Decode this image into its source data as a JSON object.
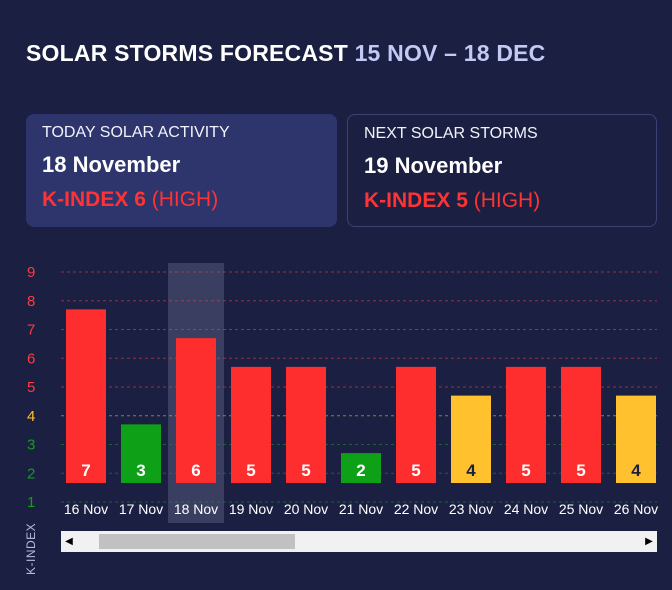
{
  "header": {
    "title_main": "SOLAR STORMS FORECAST",
    "title_range": "15 NOV – 18 DEC"
  },
  "today": {
    "label": "TODAY SOLAR ACTIVITY",
    "date": "18 November",
    "kindex_label": "K-INDEX",
    "kindex_value": "6",
    "level": "(HIGH)"
  },
  "next": {
    "label": "NEXT SOLAR STORMS",
    "date": "19 November",
    "kindex_label": "K-INDEX",
    "kindex_value": "5",
    "level": "(HIGH)"
  },
  "colors": {
    "high": "#ff2e2e",
    "medium": "#ffc22e",
    "low": "#0ea117",
    "highlight": "#3a3f61"
  },
  "scrollbar": {
    "left_icon": "arrow-left-icon",
    "right_icon": "arrow-right-icon"
  },
  "chart_data": {
    "type": "bar",
    "ylabel": "K-INDEX",
    "ylim": [
      1,
      9
    ],
    "yticks": [
      9,
      8,
      7,
      6,
      5,
      4,
      3,
      2,
      1
    ],
    "ytick_colors": {
      "9": "#ff3b3b",
      "8": "#ff3b3b",
      "7": "#ff3b3b",
      "6": "#ff3b3b",
      "5": "#ff3b3b",
      "4": "#ffc22e",
      "3": "#0ea117",
      "2": "#0ea117",
      "1": "#0ea117"
    },
    "categories": [
      "16 Nov",
      "17 Nov",
      "18 Nov",
      "19 Nov",
      "20 Nov",
      "21 Nov",
      "22 Nov",
      "23 Nov",
      "24 Nov",
      "25 Nov",
      "26 Nov"
    ],
    "values": [
      7,
      3,
      6,
      5,
      5,
      2,
      5,
      4,
      5,
      5,
      4
    ],
    "labels": [
      "7",
      "3",
      "6",
      "5",
      "5",
      "2",
      "5",
      "4",
      "5",
      "5",
      "4"
    ],
    "highlighted": "18 Nov",
    "grid": true
  }
}
